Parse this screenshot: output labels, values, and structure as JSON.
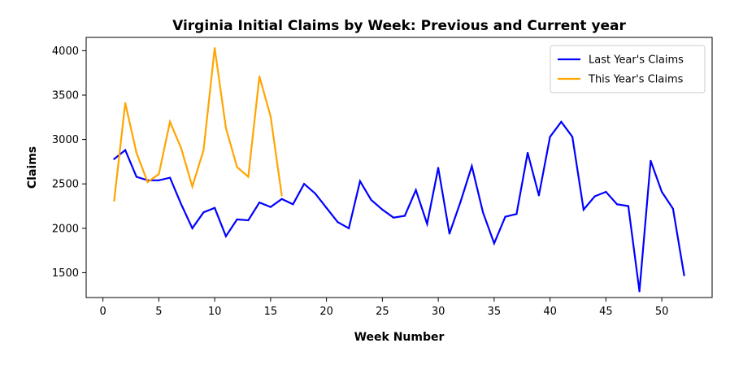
{
  "chart_data": {
    "type": "line",
    "title": "Virginia Initial Claims by Week: Previous and Current year",
    "xlabel": "Week Number",
    "ylabel": "Claims",
    "xlim": [
      -1.5,
      54.5
    ],
    "ylim": [
      1220,
      4150
    ],
    "xticks": [
      0,
      5,
      10,
      15,
      20,
      25,
      30,
      35,
      40,
      45,
      50
    ],
    "yticks": [
      1500,
      2000,
      2500,
      3000,
      3500,
      4000
    ],
    "grid": false,
    "legend_position": "top-right",
    "series": [
      {
        "name": "Last Year's Claims",
        "color": "#0000ff",
        "x": [
          1,
          2,
          3,
          4,
          5,
          6,
          7,
          8,
          9,
          10,
          11,
          12,
          13,
          14,
          15,
          16,
          17,
          18,
          19,
          20,
          21,
          22,
          23,
          24,
          25,
          26,
          27,
          28,
          29,
          30,
          31,
          32,
          33,
          34,
          35,
          36,
          37,
          38,
          39,
          40,
          41,
          42,
          43,
          44,
          45,
          46,
          47,
          48,
          49,
          50,
          51,
          52
        ],
        "y": [
          2780,
          2880,
          2580,
          2540,
          2540,
          2570,
          2270,
          2000,
          2180,
          2230,
          1910,
          2100,
          2090,
          2290,
          2240,
          2330,
          2270,
          2500,
          2390,
          2230,
          2070,
          2000,
          2530,
          2320,
          2210,
          2120,
          2140,
          2430,
          2050,
          2680,
          1940,
          2300,
          2700,
          2180,
          1830,
          2130,
          2160,
          2850,
          2370,
          3030,
          3200,
          3030,
          2210,
          2360,
          2410,
          2270,
          2250,
          1290,
          2760,
          2410,
          2220,
          1470
        ]
      },
      {
        "name": "This Year's Claims",
        "color": "#ffa500",
        "x": [
          1,
          2,
          3,
          4,
          5,
          6,
          7,
          8,
          9,
          10,
          11,
          12,
          13,
          14,
          15,
          16
        ],
        "y": [
          2310,
          3410,
          2850,
          2520,
          2610,
          3200,
          2900,
          2470,
          2880,
          4030,
          3130,
          2690,
          2580,
          3710,
          3260,
          2370
        ]
      }
    ]
  }
}
